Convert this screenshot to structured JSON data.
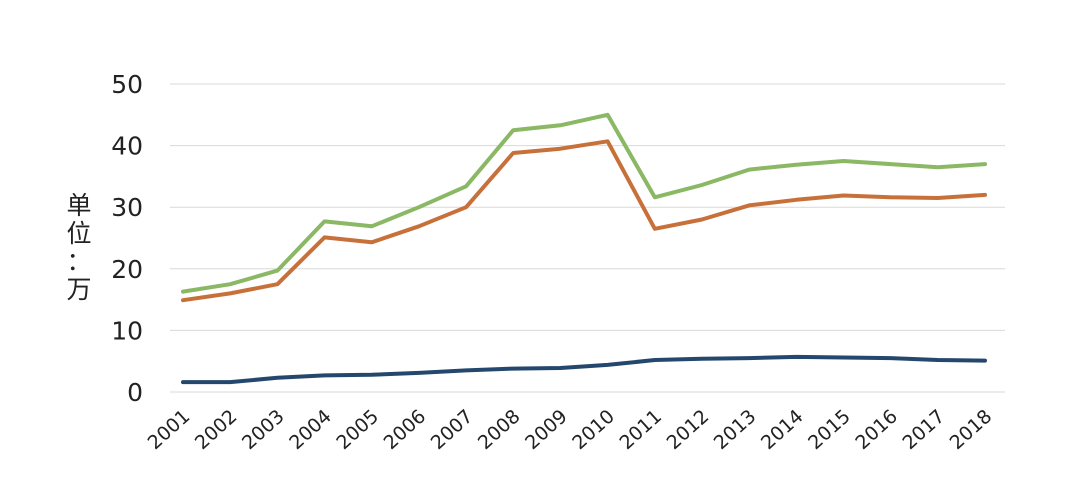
{
  "chart_data": {
    "type": "line",
    "title": "",
    "xlabel": "",
    "ylabel": "单位：万",
    "ylabel_chars": [
      "单",
      "位",
      "：",
      "万"
    ],
    "ylim": [
      0,
      50
    ],
    "yticks": [
      0,
      10,
      20,
      30,
      40,
      50
    ],
    "grid": true,
    "legend": "none",
    "x": [
      "2001",
      "2002",
      "2003",
      "2004",
      "2005",
      "2006",
      "2007",
      "2008",
      "2009",
      "2010",
      "2011",
      "2012",
      "2013",
      "2014",
      "2015",
      "2016",
      "2017",
      "2018"
    ],
    "series": [
      {
        "color": "#8ab864",
        "values": [
          16.3,
          17.5,
          19.7,
          27.7,
          26.9,
          30.0,
          33.4,
          42.5,
          43.3,
          45.0,
          31.6,
          33.6,
          36.1,
          36.9,
          37.5,
          37.0,
          36.5,
          37.0
        ]
      },
      {
        "color": "#c8703a",
        "values": [
          14.9,
          16.0,
          17.5,
          25.1,
          24.3,
          26.9,
          30.0,
          38.8,
          39.5,
          40.7,
          26.5,
          28.0,
          30.3,
          31.2,
          31.9,
          31.6,
          31.5,
          32.0
        ]
      },
      {
        "color": "#24476d",
        "values": [
          1.6,
          1.6,
          2.3,
          2.7,
          2.8,
          3.1,
          3.5,
          3.8,
          3.9,
          4.4,
          5.2,
          5.4,
          5.5,
          5.7,
          5.6,
          5.5,
          5.2,
          5.1
        ]
      }
    ]
  }
}
